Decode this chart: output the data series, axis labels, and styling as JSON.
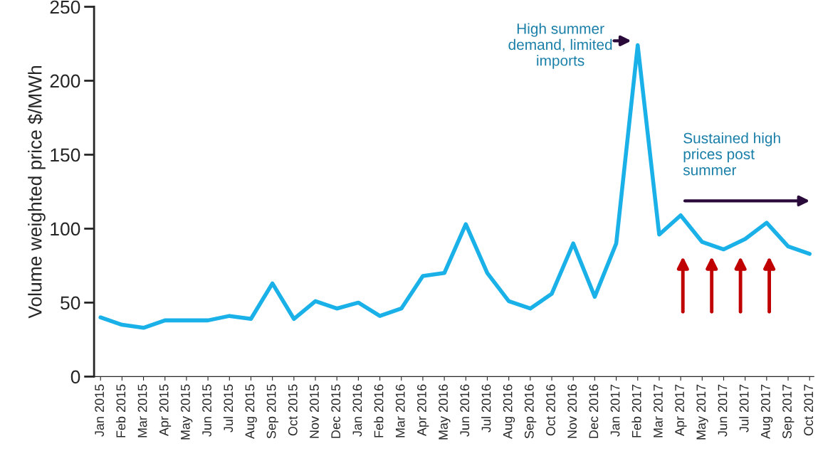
{
  "chart_data": {
    "type": "line",
    "ylabel": "Volume weighted price $/MWh",
    "categories": [
      "Jan 2015",
      "Feb 2015",
      "Mar 2015",
      "Apr 2015",
      "May 2015",
      "Jun 2015",
      "Jul 2015",
      "Aug 2015",
      "Sep 2015",
      "Oct 2015",
      "Nov 2015",
      "Dec 2015",
      "Jan 2016",
      "Feb 2016",
      "Mar 2016",
      "Apr 2016",
      "May 2016",
      "Jun 2016",
      "Jul 2016",
      "Aug 2016",
      "Sep 2016",
      "Oct 2016",
      "Nov 2016",
      "Dec 2016",
      "Jan 2017",
      "Feb 2017",
      "Mar 2017",
      "Apr 2017",
      "May 2017",
      "Jun 2017",
      "Jul 2017",
      "Aug 2017",
      "Sep 2017",
      "Oct 2017"
    ],
    "series": [
      {
        "color": "#1ab0e8",
        "values": [
          40,
          35,
          33,
          38,
          38,
          38,
          41,
          39,
          63,
          39,
          51,
          46,
          50,
          41,
          46,
          68,
          70,
          103,
          70,
          51,
          46,
          56,
          90,
          54,
          90,
          224,
          96,
          109,
          91,
          86,
          93,
          104,
          88,
          83
        ]
      }
    ],
    "ylim": [
      0,
      250
    ],
    "yticks": [
      0,
      50,
      100,
      150,
      200,
      250
    ],
    "grid": false,
    "legend": false,
    "line_style": "solid",
    "marker": "none",
    "annotations": [
      {
        "text": "High summer\ndemand, limited\nimports",
        "x": "Feb 2017",
        "y": 224
      },
      "Sustained high\nprices post\nsummer"
    ]
  }
}
